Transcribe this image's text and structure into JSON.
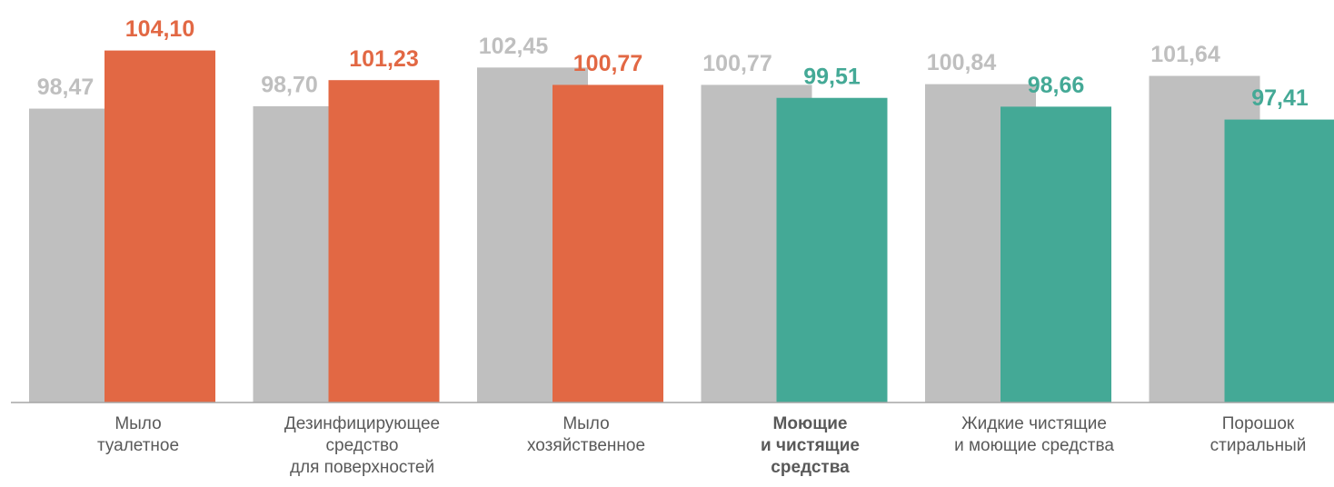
{
  "chart_data": {
    "type": "bar",
    "categories": [
      [
        "Мыло",
        "туалетное"
      ],
      [
        "Дезинфицирующее",
        "средство",
        "для поверхностей"
      ],
      [
        "Мыло",
        "хозяйственное"
      ],
      [
        "Моющие",
        "и чистящие",
        "средства"
      ],
      [
        "Жидкие чистящие",
        "и моющие средства"
      ],
      [
        "Порошок",
        "стиральный"
      ]
    ],
    "highlight_category": 3,
    "ylim": [
      70,
      106
    ],
    "series": [
      {
        "color": "#bfbfbf",
        "values": [
          98.47,
          98.7,
          102.45,
          100.77,
          100.84,
          101.64
        ],
        "value_labels": [
          "98,47",
          "98,70",
          "102,45",
          "100,77",
          "100,84",
          "101,64"
        ]
      },
      {
        "colors": [
          "#e26844",
          "#e26844",
          "#e26844",
          "#44a996",
          "#44a996",
          "#44a996"
        ],
        "values": [
          104.1,
          101.23,
          100.77,
          99.51,
          98.66,
          97.41
        ],
        "value_labels": [
          "104,10",
          "101,23",
          "100,77",
          "99,51",
          "98,66",
          "97,41"
        ]
      }
    ]
  }
}
